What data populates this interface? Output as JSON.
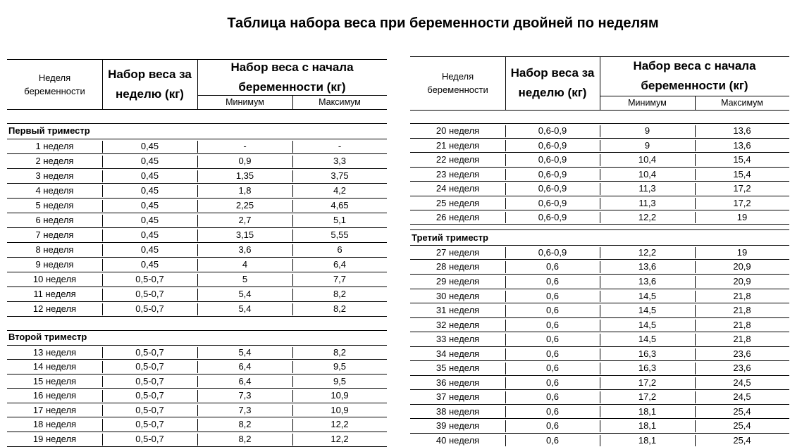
{
  "title": "Таблица набора веса при беременности двойней по неделям",
  "header": {
    "week": "Неделя беременности",
    "weekly_gain": "Набор веса за неделю (кг)",
    "total_gain": "Набор веса с начала беременности (кг)",
    "min": "Минимум",
    "max": "Максимум"
  },
  "left": {
    "sections": [
      {
        "name": "Первый триместр",
        "rows": [
          [
            "1 неделя",
            "0,45",
            "-",
            "-"
          ],
          [
            "2 неделя",
            "0,45",
            "0,9",
            "3,3"
          ],
          [
            "3 неделя",
            "0,45",
            "1,35",
            "3,75"
          ],
          [
            "4 неделя",
            "0,45",
            "1,8",
            "4,2"
          ],
          [
            "5 неделя",
            "0,45",
            "2,25",
            "4,65"
          ],
          [
            "6 неделя",
            "0,45",
            "2,7",
            "5,1"
          ],
          [
            "7 неделя",
            "0,45",
            "3,15",
            "5,55"
          ],
          [
            "8 неделя",
            "0,45",
            "3,6",
            "6"
          ],
          [
            "9 неделя",
            "0,45",
            "4",
            "6,4"
          ],
          [
            "10 неделя",
            "0,5-0,7",
            "5",
            "7,7"
          ],
          [
            "11 неделя",
            "0,5-0,7",
            "5,4",
            "8,2"
          ],
          [
            "12 неделя",
            "0,5-0,7",
            "5,4",
            "8,2"
          ]
        ]
      },
      {
        "name": "Второй триместр",
        "rows": [
          [
            "13 неделя",
            "0,5-0,7",
            "5,4",
            "8,2"
          ],
          [
            "14 неделя",
            "0,5-0,7",
            "6,4",
            "9,5"
          ],
          [
            "15 неделя",
            "0,5-0,7",
            "6,4",
            "9,5"
          ],
          [
            "16 неделя",
            "0,5-0,7",
            "7,3",
            "10,9"
          ],
          [
            "17 неделя",
            "0,5-0,7",
            "7,3",
            "10,9"
          ],
          [
            "18 неделя",
            "0,5-0,7",
            "8,2",
            "12,2"
          ],
          [
            "19 неделя",
            "0,5-0,7",
            "8,2",
            "12,2"
          ]
        ]
      }
    ]
  },
  "right": {
    "sections": [
      {
        "name": "",
        "rows": [
          [
            "20 неделя",
            "0,6-0,9",
            "9",
            "13,6"
          ],
          [
            "21 неделя",
            "0,6-0,9",
            "9",
            "13,6"
          ],
          [
            "22 неделя",
            "0,6-0,9",
            "10,4",
            "15,4"
          ],
          [
            "23 неделя",
            "0,6-0,9",
            "10,4",
            "15,4"
          ],
          [
            "24 неделя",
            "0,6-0,9",
            "11,3",
            "17,2"
          ],
          [
            "25 неделя",
            "0,6-0,9",
            "11,3",
            "17,2"
          ],
          [
            "26 неделя",
            "0,6-0,9",
            "12,2",
            "19"
          ]
        ]
      },
      {
        "name": "Третий триместр",
        "rows": [
          [
            "27 неделя",
            "0,6-0,9",
            "12,2",
            "19"
          ],
          [
            "28 неделя",
            "0,6",
            "13,6",
            "20,9"
          ],
          [
            "29 неделя",
            "0,6",
            "13,6",
            "20,9"
          ],
          [
            "30 неделя",
            "0,6",
            "14,5",
            "21,8"
          ],
          [
            "31 неделя",
            "0,6",
            "14,5",
            "21,8"
          ],
          [
            "32 неделя",
            "0,6",
            "14,5",
            "21,8"
          ],
          [
            "33 неделя",
            "0,6",
            "14,5",
            "21,8"
          ],
          [
            "34 неделя",
            "0,6",
            "16,3",
            "23,6"
          ],
          [
            "35 неделя",
            "0,6",
            "16,3",
            "23,6"
          ],
          [
            "36 неделя",
            "0,6",
            "17,2",
            "24,5"
          ],
          [
            "37 неделя",
            "0,6",
            "17,2",
            "24,5"
          ],
          [
            "38 неделя",
            "0,6",
            "18,1",
            "25,4"
          ],
          [
            "39 неделя",
            "0,6",
            "18,1",
            "25,4"
          ],
          [
            "40 неделя",
            "0,6",
            "18,1",
            "25,4"
          ]
        ]
      }
    ]
  }
}
